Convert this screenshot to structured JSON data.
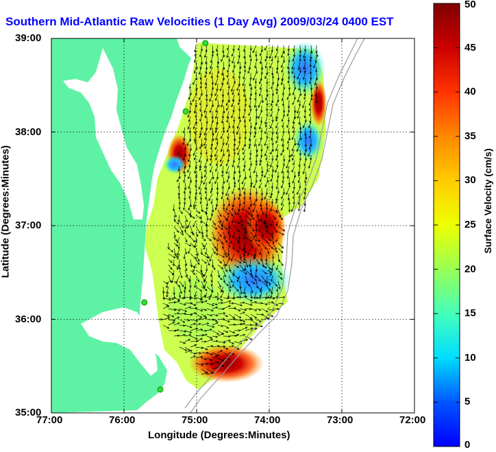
{
  "title": "Southern Mid-Atlantic Raw Velocities (1 Day Avg) 2009/03/24 0400 EST",
  "colors": {
    "land": "#5ef2a4",
    "water": "#ffffff",
    "isobath": "#9a9a9a",
    "station": "#2ee02e",
    "arrow": "#000000",
    "title": "#0000ff"
  },
  "chart_data": {
    "type": "heatmap",
    "title": "Southern Mid-Atlantic Raw Velocities (1 Day Avg) 2009/03/24 0400 EST",
    "xlabel": "Longitude (Degrees:Minutes)",
    "ylabel": "Latitude (Degrees:Minutes)",
    "xlim": [
      -77,
      -72
    ],
    "ylim": [
      35,
      39
    ],
    "x_ticks": [
      "77:00",
      "76:00",
      "75:00",
      "74:00",
      "73:00",
      "72:00"
    ],
    "y_ticks": [
      "39:00",
      "38:00",
      "37:00",
      "36:00",
      "35:00"
    ],
    "grid": true,
    "colorbar": {
      "label": "Surface Velocity (cm/s)",
      "min": 0,
      "max": 50,
      "ticks": [
        "0",
        "5",
        "10",
        "15",
        "20",
        "25",
        "30",
        "35",
        "40",
        "45",
        "50"
      ]
    },
    "stations": [
      {
        "lon": -74.88,
        "lat": 38.95
      },
      {
        "lon": -75.15,
        "lat": 38.22
      },
      {
        "lon": -75.72,
        "lat": 36.18
      },
      {
        "lon": -75.5,
        "lat": 35.25
      }
    ]
  }
}
